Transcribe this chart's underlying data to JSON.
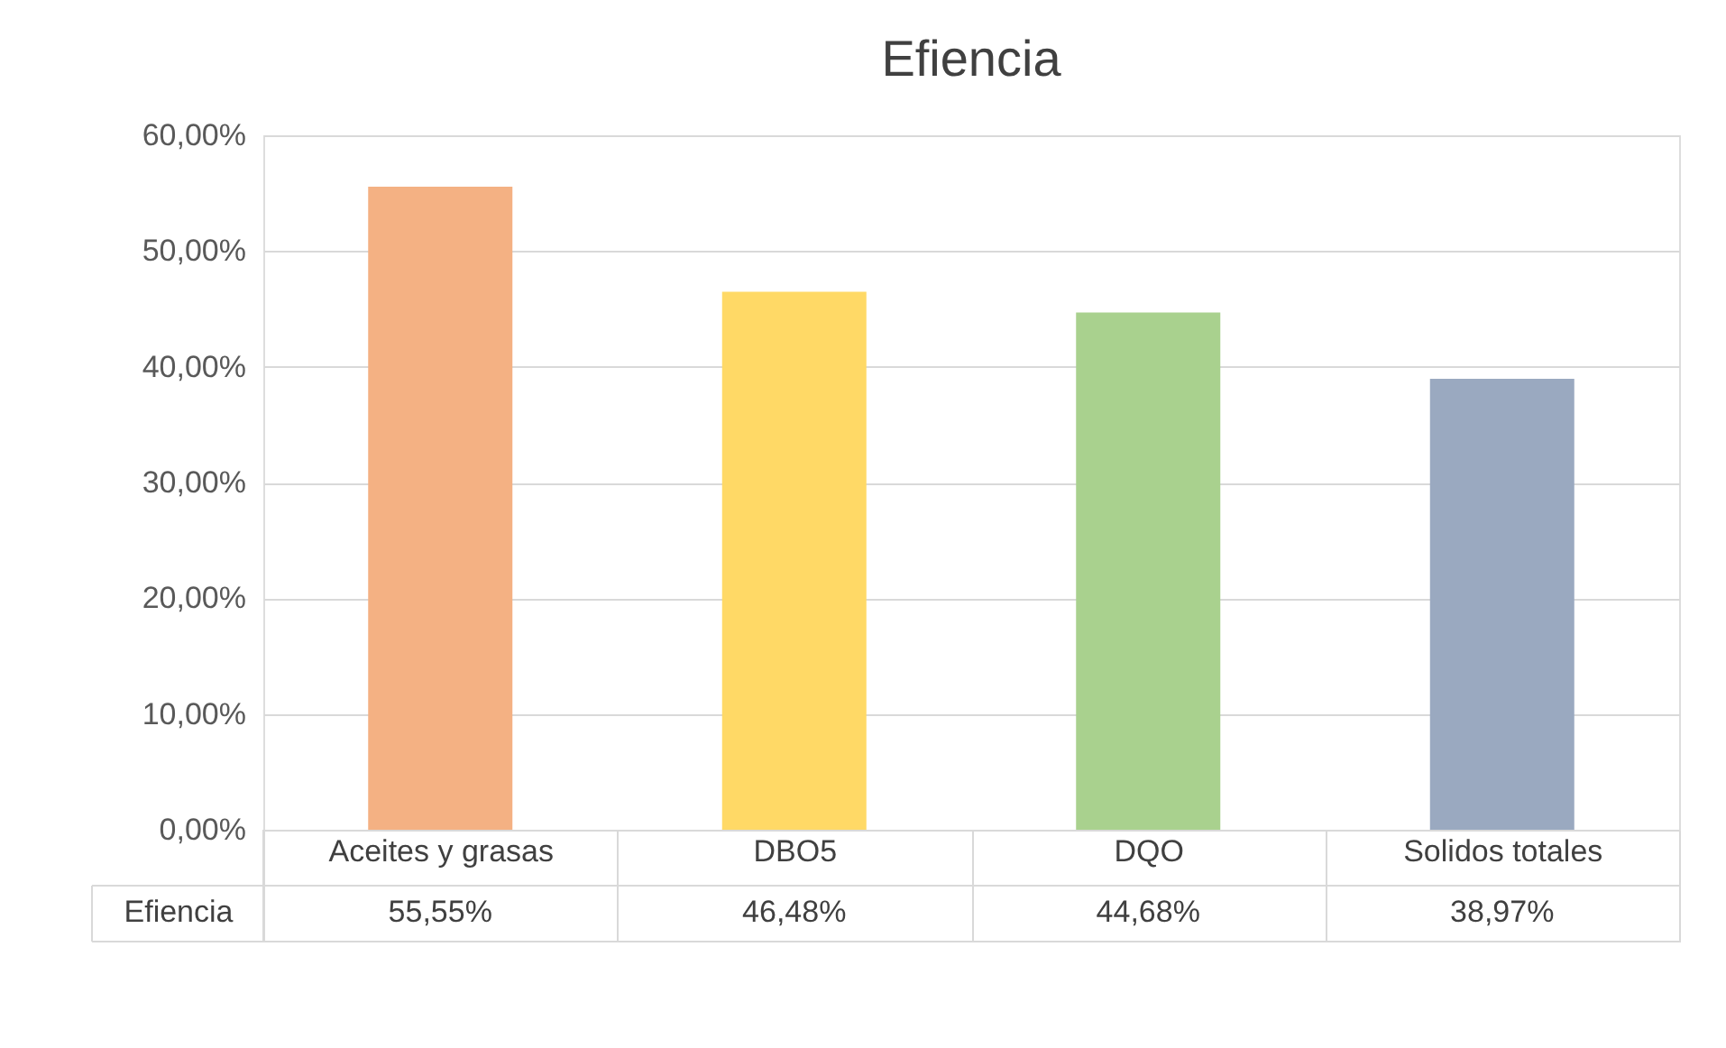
{
  "chart_data": {
    "type": "bar",
    "title": "Efiencia",
    "categories": [
      "Aceites y grasas",
      "DBO5",
      "DQO",
      "Solidos totales"
    ],
    "series": [
      {
        "name": "Efiencia",
        "colors": [
          "#f4b183",
          "#ffd966",
          "#a9d18e",
          "#9aa9c0"
        ],
        "values": [
          55.55,
          46.48,
          44.68,
          38.97
        ],
        "value_labels": [
          "55,55%",
          "46,48%",
          "44,68%",
          "38,97%"
        ]
      }
    ],
    "ylim": [
      0,
      60
    ],
    "yticks": [
      {
        "value": 0,
        "label": "0,00%"
      },
      {
        "value": 10,
        "label": "10,00%"
      },
      {
        "value": 20,
        "label": "20,00%"
      },
      {
        "value": 30,
        "label": "30,00%"
      },
      {
        "value": 40,
        "label": "40,00%"
      },
      {
        "value": 50,
        "label": "50,00%"
      },
      {
        "value": 60,
        "label": "60,00%"
      }
    ],
    "grid": "y"
  }
}
